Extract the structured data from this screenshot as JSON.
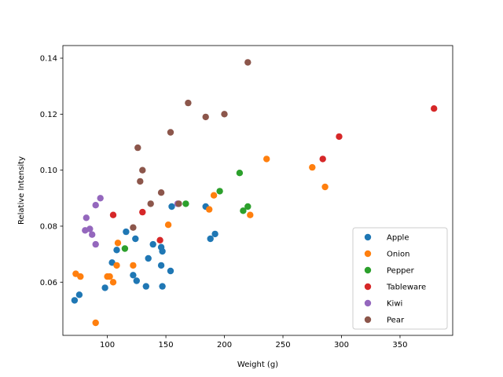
{
  "chart_data": {
    "type": "scatter",
    "title": "",
    "xlabel": "Weight (g)",
    "ylabel": "Relative Intensity",
    "xlim": [
      62,
      395
    ],
    "ylim": [
      0.041,
      0.1445
    ],
    "xticks": [
      100,
      150,
      200,
      250,
      300,
      350
    ],
    "yticks": [
      0.06,
      0.08,
      0.1,
      0.12,
      0.14
    ],
    "ytick_labels": [
      "0.06",
      "0.08",
      "0.10",
      "0.12",
      "0.14"
    ],
    "grid": false,
    "legend_position": "lower-right",
    "series": [
      {
        "name": "Apple",
        "color": "#1f77b4",
        "points": [
          [
            72,
            0.0535
          ],
          [
            76,
            0.0555
          ],
          [
            98,
            0.058
          ],
          [
            104,
            0.067
          ],
          [
            108,
            0.0715
          ],
          [
            116,
            0.078
          ],
          [
            122,
            0.0625
          ],
          [
            124,
            0.0755
          ],
          [
            125,
            0.0605
          ],
          [
            133,
            0.0585
          ],
          [
            135,
            0.0685
          ],
          [
            139,
            0.0735
          ],
          [
            146,
            0.0725
          ],
          [
            146,
            0.066
          ],
          [
            147,
            0.071
          ],
          [
            147,
            0.0585
          ],
          [
            154,
            0.064
          ],
          [
            155,
            0.087
          ],
          [
            184,
            0.087
          ],
          [
            188,
            0.0755
          ],
          [
            192,
            0.0772
          ]
        ]
      },
      {
        "name": "Onion",
        "color": "#ff7f0e",
        "points": [
          [
            73,
            0.063
          ],
          [
            77,
            0.062
          ],
          [
            90,
            0.0455
          ],
          [
            100,
            0.062
          ],
          [
            102,
            0.062
          ],
          [
            105,
            0.06
          ],
          [
            108,
            0.066
          ],
          [
            109,
            0.074
          ],
          [
            122,
            0.066
          ],
          [
            152,
            0.0805
          ],
          [
            187,
            0.086
          ],
          [
            191,
            0.091
          ],
          [
            222,
            0.084
          ],
          [
            236,
            0.104
          ],
          [
            275,
            0.101
          ],
          [
            286,
            0.094
          ]
        ]
      },
      {
        "name": "Pepper",
        "color": "#2ca02c",
        "points": [
          [
            115,
            0.072
          ],
          [
            167,
            0.088
          ],
          [
            196,
            0.0925
          ],
          [
            213,
            0.099
          ],
          [
            216,
            0.0855
          ],
          [
            220,
            0.087
          ]
        ]
      },
      {
        "name": "Tableware",
        "color": "#d62728",
        "points": [
          [
            105,
            0.084
          ],
          [
            130,
            0.085
          ],
          [
            145,
            0.075
          ],
          [
            284,
            0.104
          ],
          [
            298,
            0.112
          ],
          [
            379,
            0.122
          ]
        ]
      },
      {
        "name": "Kiwi",
        "color": "#9467bd",
        "points": [
          [
            81,
            0.0785
          ],
          [
            82,
            0.083
          ],
          [
            85,
            0.079
          ],
          [
            87,
            0.077
          ],
          [
            90,
            0.0875
          ],
          [
            90,
            0.0735
          ],
          [
            94,
            0.09
          ],
          [
            160,
            0.088
          ]
        ]
      },
      {
        "name": "Pear",
        "color": "#8c564b",
        "points": [
          [
            122,
            0.0795
          ],
          [
            126,
            0.108
          ],
          [
            128,
            0.096
          ],
          [
            130,
            0.1
          ],
          [
            137,
            0.088
          ],
          [
            146,
            0.092
          ],
          [
            154,
            0.1135
          ],
          [
            161,
            0.088
          ],
          [
            169,
            0.124
          ],
          [
            184,
            0.119
          ],
          [
            200,
            0.12
          ],
          [
            220,
            0.1385
          ]
        ]
      }
    ]
  }
}
